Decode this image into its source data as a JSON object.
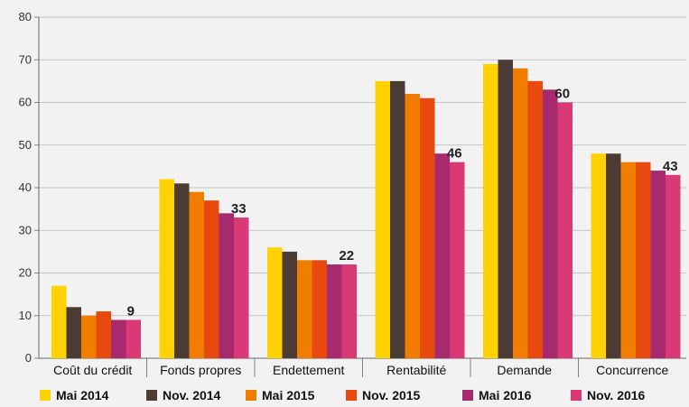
{
  "chart_data": {
    "type": "bar",
    "categories": [
      "Coût du crédit",
      "Fonds propres",
      "Endettement",
      "Rentabilité",
      "Demande",
      "Concurrence"
    ],
    "series": [
      {
        "name": "Mai 2014",
        "color": "#ffd200",
        "values": [
          17,
          42,
          26,
          65,
          69,
          48
        ]
      },
      {
        "name": "Nov. 2014",
        "color": "#4d3b35",
        "values": [
          12,
          41,
          25,
          65,
          70,
          48
        ]
      },
      {
        "name": "Mai 2015",
        "color": "#f07c00",
        "values": [
          10,
          39,
          23,
          62,
          68,
          46
        ]
      },
      {
        "name": "Nov. 2015",
        "color": "#e8490f",
        "values": [
          11,
          37,
          23,
          61,
          65,
          46
        ]
      },
      {
        "name": "Mai 2016",
        "color": "#a62a6d",
        "values": [
          9,
          34,
          22,
          48,
          63,
          44
        ]
      },
      {
        "name": "Nov. 2016",
        "color": "#d93a75",
        "values": [
          9,
          33,
          22,
          46,
          60,
          43
        ]
      }
    ],
    "data_labels": [
      "9",
      "33",
      "22",
      "46",
      "60",
      "43"
    ],
    "yticks": [
      "0",
      "10",
      "20",
      "30",
      "40",
      "50",
      "60",
      "70",
      "80"
    ],
    "ylim": [
      0,
      80
    ],
    "grid": true,
    "legend_position": "bottom",
    "title": "",
    "xlabel": "",
    "ylabel": ""
  }
}
